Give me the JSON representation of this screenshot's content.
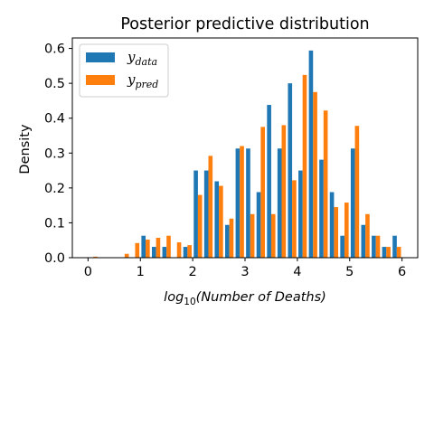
{
  "chart_data": {
    "type": "bar",
    "title": "Posterior predictive distribution",
    "xlabel": {
      "main": "log",
      "sub": "10",
      "rest": "(Number of Deaths)"
    },
    "ylabel": "Density",
    "xlim": [
      -0.3,
      6.3
    ],
    "ylim": [
      0,
      0.63
    ],
    "xticks": [
      0,
      1,
      2,
      3,
      4,
      5,
      6
    ],
    "yticks": [
      0.0,
      0.1,
      0.2,
      0.3,
      0.4,
      0.5,
      0.6
    ],
    "bin_width": 0.2,
    "grid": false,
    "legend_position": "upper-left",
    "bin_starts": [
      0.0,
      0.2,
      0.4,
      0.6,
      0.8,
      1.0,
      1.2,
      1.4,
      1.6,
      1.8,
      2.0,
      2.2,
      2.4,
      2.6,
      2.8,
      3.0,
      3.2,
      3.4,
      3.6,
      3.8,
      4.0,
      4.2,
      4.4,
      4.6,
      4.8,
      5.0,
      5.2,
      5.4,
      5.6,
      5.8
    ],
    "series": [
      {
        "name": "y_data",
        "label_main": "y",
        "label_sub": "data",
        "color": "#1f77b4",
        "values": [
          0,
          0,
          0,
          0,
          0,
          0.063,
          0.031,
          0.031,
          0,
          0.031,
          0.25,
          0.25,
          0.219,
          0.094,
          0.313,
          0.313,
          0.188,
          0.438,
          0.313,
          0.5,
          0.25,
          0.594,
          0.281,
          0.188,
          0.063,
          0.313,
          0.094,
          0.063,
          0.031,
          0.063
        ]
      },
      {
        "name": "y_pred",
        "label_main": "y",
        "label_sub": "pred",
        "color": "#ff7f0e",
        "values": [
          0.003,
          0,
          0,
          0.011,
          0.042,
          0.052,
          0.057,
          0.063,
          0.044,
          0.036,
          0.18,
          0.292,
          0.206,
          0.112,
          0.32,
          0.125,
          0.375,
          0.125,
          0.38,
          0.222,
          0.524,
          0.475,
          0.422,
          0.145,
          0.158,
          0.378,
          0.125,
          0.063,
          0.031,
          0.031
        ]
      }
    ]
  }
}
